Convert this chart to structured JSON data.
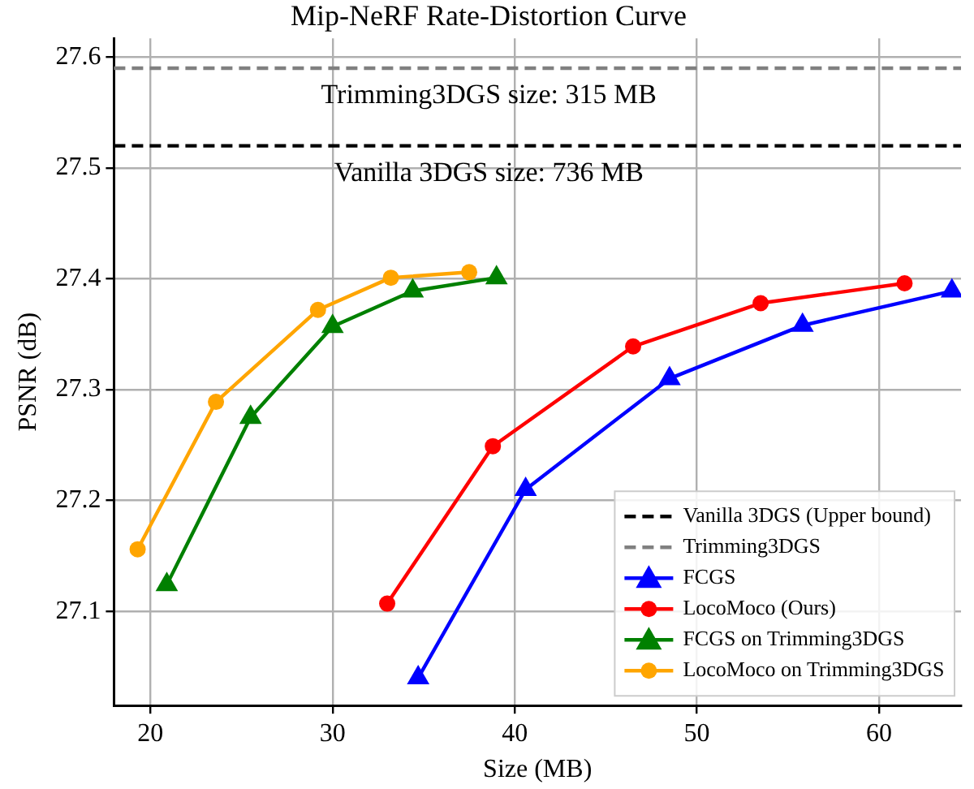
{
  "chart_data": {
    "type": "line",
    "title": "Mip-NeRF Rate-Distortion Curve",
    "xlabel": "Size (MB)",
    "ylabel": "PSNR (dB)",
    "xlim": [
      18,
      64.5
    ],
    "xticks": [
      20,
      30,
      40,
      50,
      60
    ],
    "ylim": [
      27.015,
      27.617
    ],
    "yticks": [
      27.1,
      27.2,
      27.3,
      27.4,
      27.5,
      27.6
    ],
    "grid": true,
    "legend": "bottom right",
    "line_style": "solid",
    "series": [
      {
        "name": "FCGS",
        "color": "#0000ff",
        "marker": "triangle",
        "x": [
          34.7,
          40.6,
          48.5,
          55.8,
          64.0
        ],
        "values": [
          27.04,
          27.21,
          27.31,
          27.358,
          27.389
        ]
      },
      {
        "name": "LocoMoco (Ours)",
        "color": "#ff0000",
        "marker": "circle",
        "x": [
          33.0,
          38.8,
          46.5,
          53.5,
          61.4
        ],
        "values": [
          27.107,
          27.249,
          27.339,
          27.378,
          27.396
        ]
      },
      {
        "name": "FCGS on Trimming3DGS",
        "color": "#008000",
        "marker": "triangle",
        "x": [
          20.9,
          25.5,
          30.0,
          34.4,
          39.0
        ],
        "values": [
          27.124,
          27.275,
          27.357,
          27.389,
          27.401
        ]
      },
      {
        "name": "LocoMoco on Trimming3DGS",
        "color": "#ffa500",
        "marker": "circle",
        "x": [
          19.3,
          23.6,
          29.2,
          33.2,
          37.5
        ],
        "values": [
          27.156,
          27.289,
          27.372,
          27.401,
          27.406
        ]
      }
    ],
    "ref_lines": [
      {
        "axis": "y",
        "value": 27.52,
        "label": "Vanilla 3DGS (Upper bound)",
        "color": "#000000",
        "line_style": "dashed"
      },
      {
        "axis": "y",
        "value": 27.59,
        "label": "Trimming3DGS",
        "color": "#808080",
        "line_style": "dashed"
      }
    ],
    "annotations": [
      "Trimming3DGS size: 315 MB",
      "Vanilla 3DGS size: 736 MB"
    ]
  }
}
